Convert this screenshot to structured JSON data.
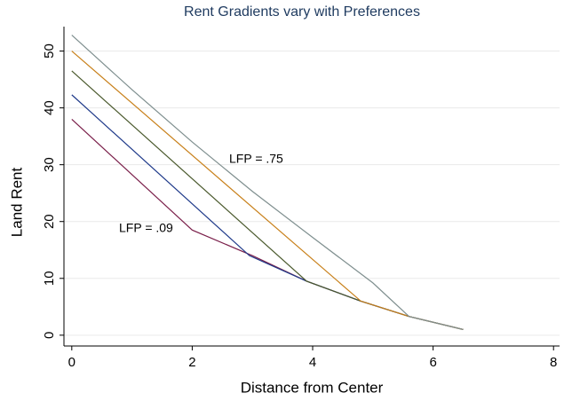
{
  "chart_data": {
    "type": "line",
    "title": "Rent Gradients vary with Preferences",
    "x_label": "Distance from Center",
    "y_label": "Land Rent",
    "annotations": [
      "LFP = .75",
      "LFP = .09"
    ],
    "xlim": [
      -0.13,
      8.1
    ],
    "xticks": [
      0,
      2,
      4,
      6,
      8
    ],
    "ylim": [
      -1.9,
      54.3
    ],
    "yticks": [
      0,
      10,
      20,
      30,
      40,
      50
    ],
    "grid": true,
    "series": [
      {
        "color": "#7a1f4a",
        "x": [
          0,
          2,
          3,
          3.9,
          4.8,
          5.6,
          6.5
        ],
        "values": [
          38,
          18.5,
          14,
          9.5,
          6,
          3.3,
          1
        ]
      },
      {
        "color": "#1f3a8a",
        "x": [
          0,
          2.95,
          3.9,
          4.8,
          5.6,
          6.5
        ],
        "values": [
          42.3,
          14,
          9.5,
          6,
          3.3,
          1
        ]
      },
      {
        "color": "#4b5a2e",
        "x": [
          0,
          3.9,
          4.8,
          5.6,
          6.5
        ],
        "values": [
          46.5,
          9.5,
          6,
          3.3,
          1
        ]
      },
      {
        "color": "#c8801a",
        "x": [
          0,
          4.8,
          5.6,
          6.5
        ],
        "values": [
          50,
          6,
          3.3,
          1
        ]
      },
      {
        "color": "#7f8f8f",
        "x": [
          0,
          1,
          2,
          3,
          4,
          5,
          5.6,
          6.5
        ],
        "values": [
          52.8,
          43.2,
          34,
          25.3,
          17.2,
          9.2,
          3.3,
          1
        ]
      }
    ]
  }
}
